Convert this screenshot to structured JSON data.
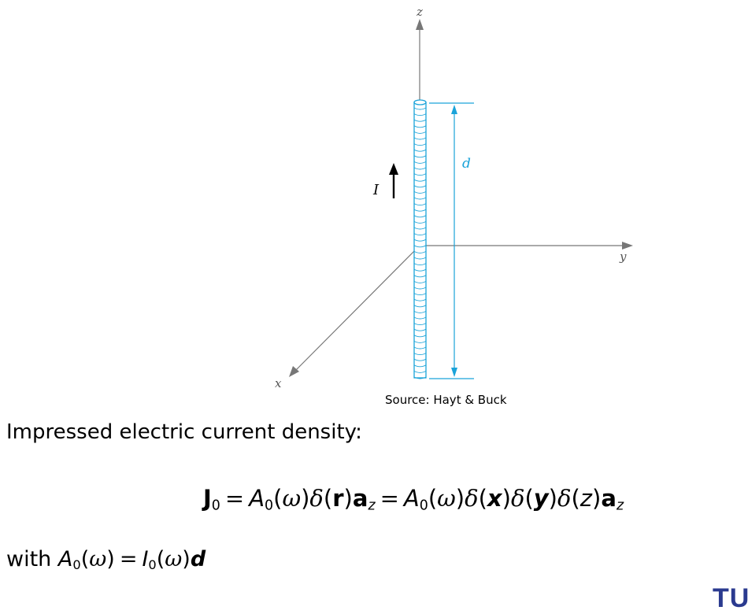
{
  "figure": {
    "axis_z": "z",
    "axis_y": "y",
    "axis_x": "x",
    "length_label": "d",
    "current_label": "I",
    "caption": "Source: Hayt & Buck"
  },
  "text": {
    "heading": "Impressed electric current density:",
    "with_word": "with"
  },
  "colors": {
    "dipole": "#1aa3d9",
    "axes": "#777777",
    "logo": "#2a3a8f"
  },
  "logo": {
    "text": "TU"
  }
}
